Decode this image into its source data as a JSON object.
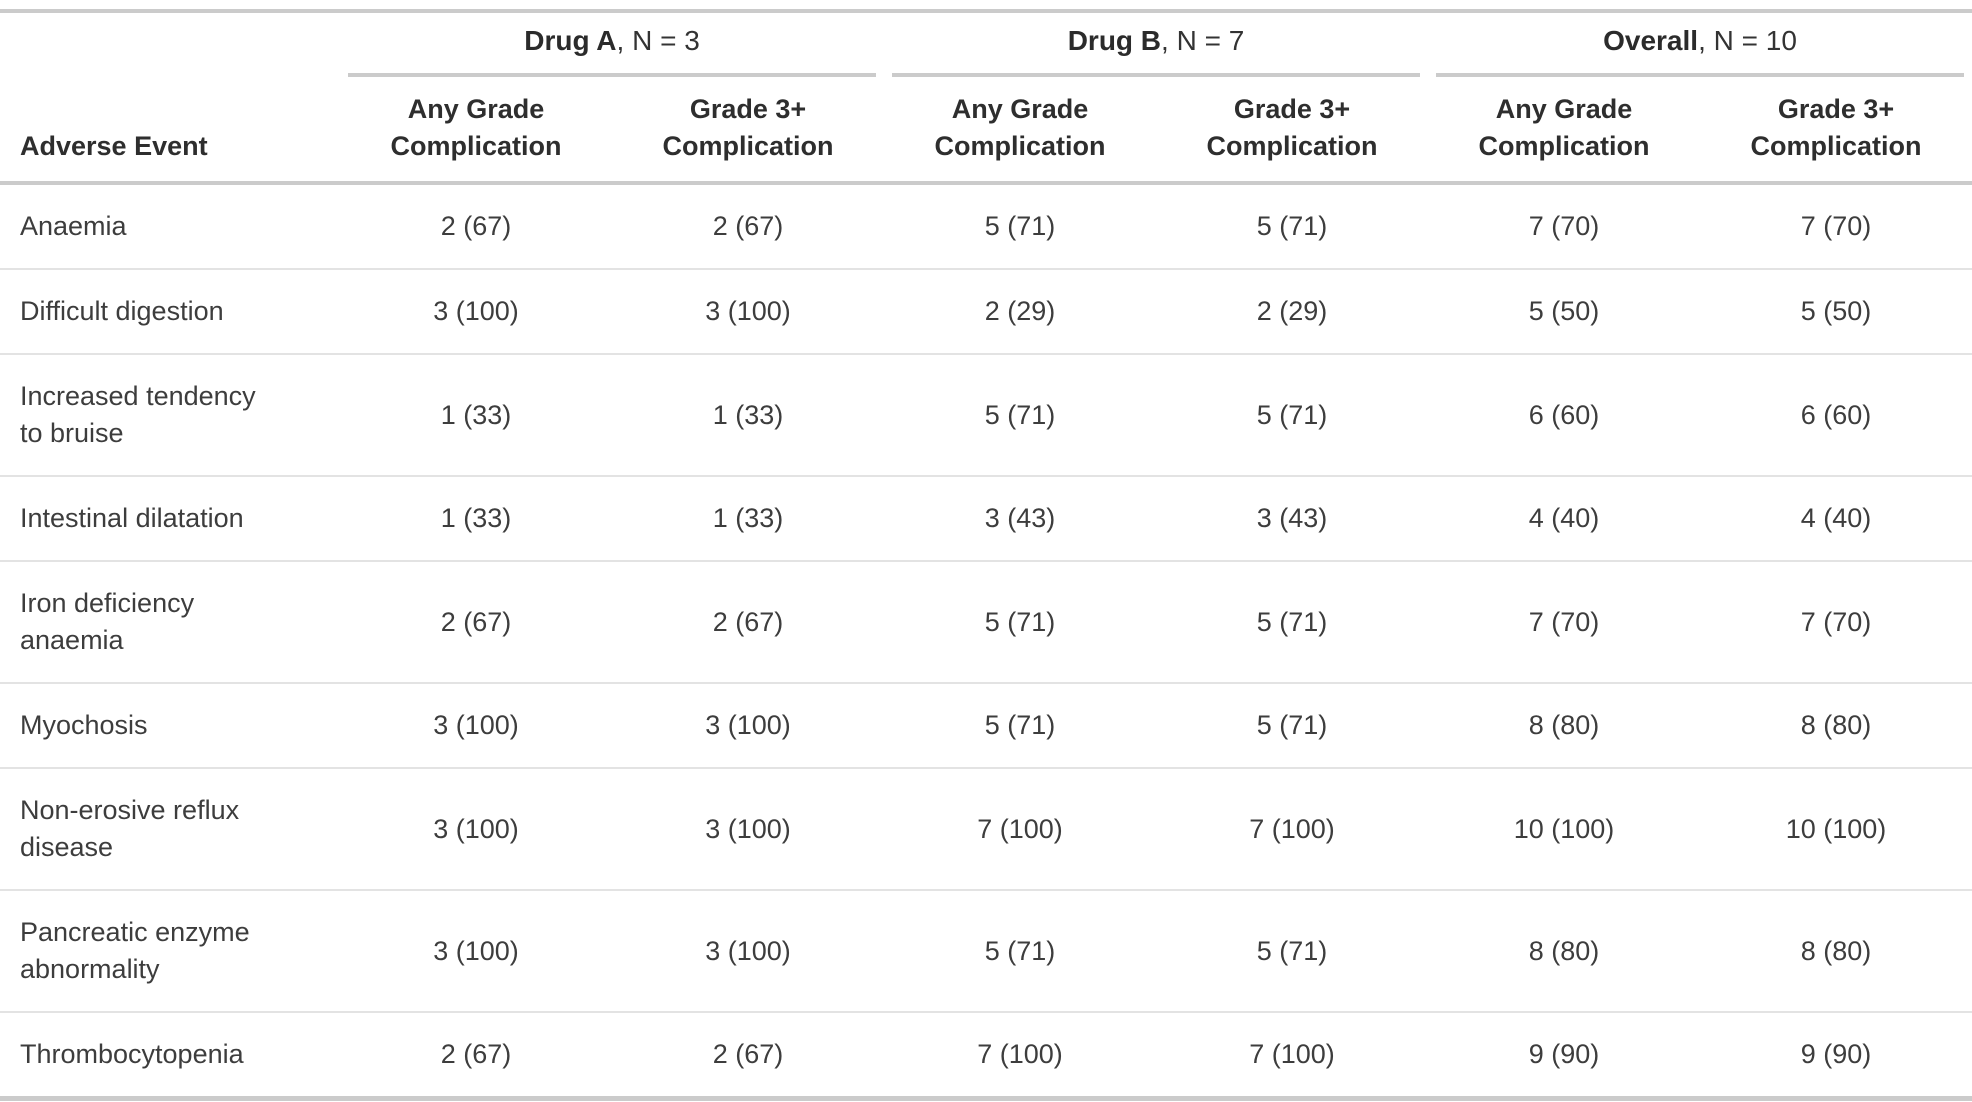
{
  "table": {
    "stub_header": "Adverse Event",
    "spanners": [
      {
        "label": "Drug A",
        "n": ", N = 3"
      },
      {
        "label": "Drug B",
        "n": ", N = 7"
      },
      {
        "label": "Overall",
        "n": ", N = 10"
      }
    ],
    "columns": [
      {
        "line1": "Any Grade",
        "line2": "Complication"
      },
      {
        "line1": "Grade 3+",
        "line2": "Complication"
      },
      {
        "line1": "Any Grade",
        "line2": "Complication"
      },
      {
        "line1": "Grade 3+",
        "line2": "Complication"
      },
      {
        "line1": "Any Grade",
        "line2": "Complication"
      },
      {
        "line1": "Grade 3+",
        "line2": "Complication"
      }
    ],
    "rows": [
      {
        "event_lines": [
          "Anaemia"
        ],
        "values": [
          "2 (67)",
          "2 (67)",
          "5 (71)",
          "5 (71)",
          "7 (70)",
          "7 (70)"
        ]
      },
      {
        "event_lines": [
          "Difficult digestion"
        ],
        "values": [
          "3 (100)",
          "3 (100)",
          "2 (29)",
          "2 (29)",
          "5 (50)",
          "5 (50)"
        ]
      },
      {
        "event_lines": [
          "Increased tendency",
          "to bruise"
        ],
        "values": [
          "1 (33)",
          "1 (33)",
          "5 (71)",
          "5 (71)",
          "6 (60)",
          "6 (60)"
        ]
      },
      {
        "event_lines": [
          "Intestinal dilatation"
        ],
        "values": [
          "1 (33)",
          "1 (33)",
          "3 (43)",
          "3 (43)",
          "4 (40)",
          "4 (40)"
        ]
      },
      {
        "event_lines": [
          "Iron deficiency",
          "anaemia"
        ],
        "values": [
          "2 (67)",
          "2 (67)",
          "5 (71)",
          "5 (71)",
          "7 (70)",
          "7 (70)"
        ]
      },
      {
        "event_lines": [
          "Myochosis"
        ],
        "values": [
          "3 (100)",
          "3 (100)",
          "5 (71)",
          "5 (71)",
          "8 (80)",
          "8 (80)"
        ]
      },
      {
        "event_lines": [
          "Non-erosive reflux",
          "disease"
        ],
        "values": [
          "3 (100)",
          "3 (100)",
          "7 (100)",
          "7 (100)",
          "10 (100)",
          "10 (100)"
        ]
      },
      {
        "event_lines": [
          "Pancreatic enzyme",
          "abnormality"
        ],
        "values": [
          "3 (100)",
          "3 (100)",
          "5 (71)",
          "5 (71)",
          "8 (80)",
          "8 (80)"
        ]
      },
      {
        "event_lines": [
          "Thrombocytopenia"
        ],
        "values": [
          "2 (67)",
          "2 (67)",
          "7 (100)",
          "7 (100)",
          "9 (90)",
          "9 (90)"
        ]
      }
    ],
    "colors": {
      "rule": "#cbcbcb",
      "row_line": "#e3e3e3",
      "text": "#3d3d3d",
      "header_text": "#2e2e2e"
    }
  },
  "chart_data": {
    "type": "table",
    "title": "",
    "column_groups": [
      "Drug A, N = 3",
      "Drug B, N = 7",
      "Overall, N = 10"
    ],
    "columns": [
      "Adverse Event",
      "Drug A Any Grade Complication",
      "Drug A Grade 3+ Complication",
      "Drug B Any Grade Complication",
      "Drug B Grade 3+ Complication",
      "Overall Any Grade Complication",
      "Overall Grade 3+ Complication"
    ],
    "rows": [
      [
        "Anaemia",
        "2 (67)",
        "2 (67)",
        "5 (71)",
        "5 (71)",
        "7 (70)",
        "7 (70)"
      ],
      [
        "Difficult digestion",
        "3 (100)",
        "3 (100)",
        "2 (29)",
        "2 (29)",
        "5 (50)",
        "5 (50)"
      ],
      [
        "Increased tendency to bruise",
        "1 (33)",
        "1 (33)",
        "5 (71)",
        "5 (71)",
        "6 (60)",
        "6 (60)"
      ],
      [
        "Intestinal dilatation",
        "1 (33)",
        "1 (33)",
        "3 (43)",
        "3 (43)",
        "4 (40)",
        "4 (40)"
      ],
      [
        "Iron deficiency anaemia",
        "2 (67)",
        "2 (67)",
        "5 (71)",
        "5 (71)",
        "7 (70)",
        "7 (70)"
      ],
      [
        "Myochosis",
        "3 (100)",
        "3 (100)",
        "5 (71)",
        "5 (71)",
        "8 (80)",
        "8 (80)"
      ],
      [
        "Non-erosive reflux disease",
        "3 (100)",
        "3 (100)",
        "7 (100)",
        "7 (100)",
        "10 (100)",
        "10 (100)"
      ],
      [
        "Pancreatic enzyme abnormality",
        "3 (100)",
        "3 (100)",
        "5 (71)",
        "5 (71)",
        "8 (80)",
        "8 (80)"
      ],
      [
        "Thrombocytopenia",
        "2 (67)",
        "2 (67)",
        "7 (100)",
        "7 (100)",
        "9 (90)",
        "9 (90)"
      ]
    ]
  }
}
